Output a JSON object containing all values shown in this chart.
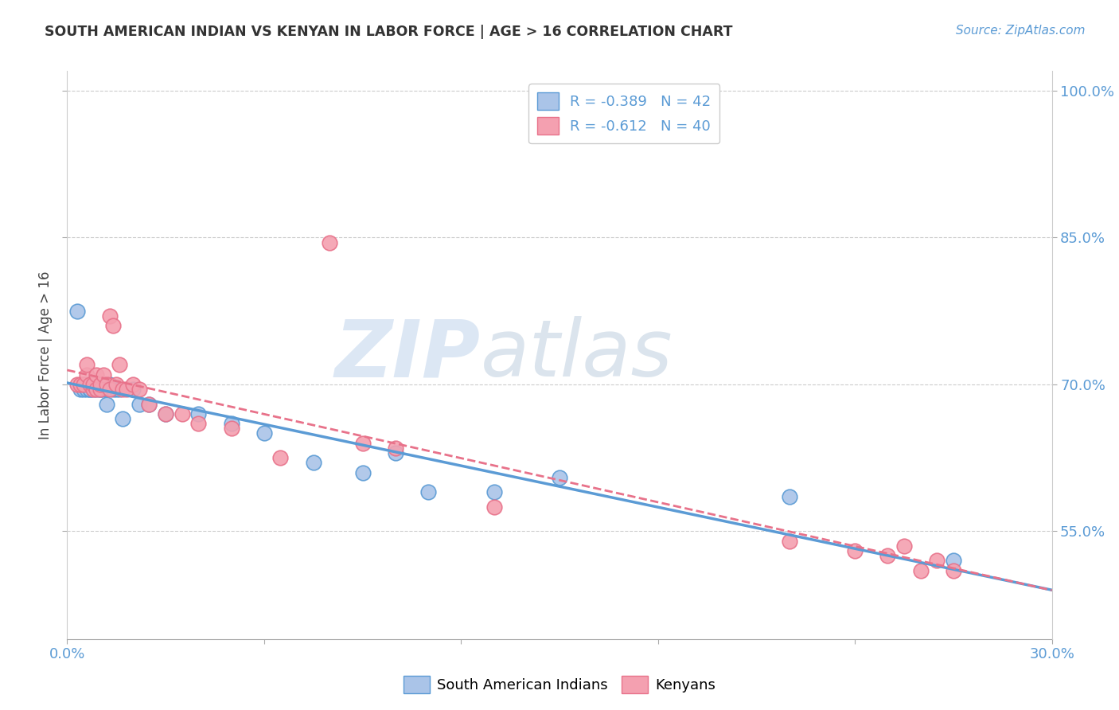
{
  "title": "SOUTH AMERICAN INDIAN VS KENYAN IN LABOR FORCE | AGE > 16 CORRELATION CHART",
  "source": "Source: ZipAtlas.com",
  "ylabel": "In Labor Force | Age > 16",
  "xlim": [
    0.0,
    0.3
  ],
  "ylim": [
    0.44,
    1.02
  ],
  "y_ticks": [
    0.55,
    0.7,
    0.85,
    1.0
  ],
  "y_tick_labels": [
    "55.0%",
    "70.0%",
    "85.0%",
    "100.0%"
  ],
  "x_ticks": [
    0.0,
    0.06,
    0.12,
    0.18,
    0.24,
    0.3
  ],
  "x_tick_labels": [
    "0.0%",
    "",
    "",
    "",
    "",
    "30.0%"
  ],
  "blue_R": -0.389,
  "blue_N": 42,
  "pink_R": -0.612,
  "pink_N": 40,
  "blue_color": "#aac4e8",
  "pink_color": "#f4a0b0",
  "blue_line_color": "#5b9bd5",
  "pink_line_color": "#e8728a",
  "watermark_zip": "ZIP",
  "watermark_atlas": "atlas",
  "blue_scatter_x": [
    0.003,
    0.004,
    0.005,
    0.005,
    0.006,
    0.006,
    0.007,
    0.007,
    0.007,
    0.008,
    0.008,
    0.008,
    0.009,
    0.009,
    0.01,
    0.01,
    0.01,
    0.01,
    0.011,
    0.011,
    0.012,
    0.012,
    0.013,
    0.014,
    0.015,
    0.016,
    0.017,
    0.02,
    0.022,
    0.025,
    0.03,
    0.04,
    0.05,
    0.06,
    0.075,
    0.09,
    0.1,
    0.11,
    0.13,
    0.15,
    0.22,
    0.27
  ],
  "blue_scatter_y": [
    0.775,
    0.695,
    0.695,
    0.7,
    0.695,
    0.7,
    0.695,
    0.7,
    0.695,
    0.7,
    0.695,
    0.7,
    0.695,
    0.7,
    0.695,
    0.695,
    0.7,
    0.7,
    0.695,
    0.7,
    0.695,
    0.68,
    0.7,
    0.695,
    0.695,
    0.695,
    0.665,
    0.695,
    0.68,
    0.68,
    0.67,
    0.67,
    0.66,
    0.65,
    0.62,
    0.61,
    0.63,
    0.59,
    0.59,
    0.605,
    0.585,
    0.52
  ],
  "pink_scatter_x": [
    0.003,
    0.004,
    0.005,
    0.006,
    0.006,
    0.007,
    0.008,
    0.008,
    0.009,
    0.009,
    0.01,
    0.01,
    0.011,
    0.012,
    0.013,
    0.013,
    0.014,
    0.015,
    0.016,
    0.017,
    0.018,
    0.02,
    0.022,
    0.025,
    0.03,
    0.035,
    0.04,
    0.05,
    0.065,
    0.08,
    0.09,
    0.1,
    0.13,
    0.22,
    0.24,
    0.25,
    0.255,
    0.26,
    0.265,
    0.27
  ],
  "pink_scatter_y": [
    0.7,
    0.7,
    0.7,
    0.71,
    0.72,
    0.7,
    0.695,
    0.7,
    0.71,
    0.695,
    0.695,
    0.7,
    0.71,
    0.7,
    0.77,
    0.695,
    0.76,
    0.7,
    0.72,
    0.695,
    0.695,
    0.7,
    0.695,
    0.68,
    0.67,
    0.67,
    0.66,
    0.655,
    0.625,
    0.845,
    0.64,
    0.635,
    0.575,
    0.54,
    0.53,
    0.525,
    0.535,
    0.51,
    0.52,
    0.51
  ]
}
